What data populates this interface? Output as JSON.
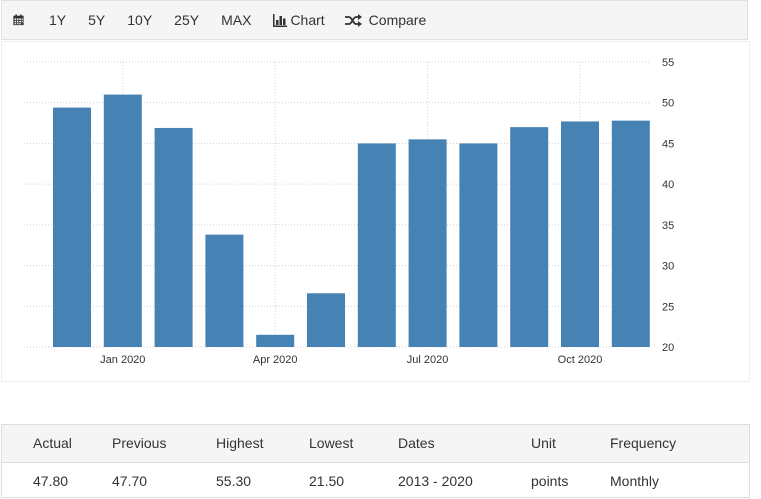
{
  "toolbar": {
    "calendar_icon": "calendar-icon",
    "ranges": [
      "1Y",
      "5Y",
      "10Y",
      "25Y",
      "MAX"
    ],
    "chart_label": "Chart",
    "chart_icon": "bar-chart-icon",
    "compare_label": "Compare",
    "compare_icon": "shuffle-icon"
  },
  "chart_data": {
    "type": "bar",
    "categories": [
      "Dec 2019",
      "Jan 2020",
      "Feb 2020",
      "Mar 2020",
      "Apr 2020",
      "May 2020",
      "Jun 2020",
      "Jul 2020",
      "Aug 2020",
      "Sep 2020",
      "Oct 2020",
      "Nov 2020"
    ],
    "values": [
      49.4,
      51.0,
      46.9,
      33.8,
      21.5,
      26.6,
      45.0,
      45.5,
      45.0,
      47.0,
      47.7,
      47.8
    ],
    "x_tick_labels": [
      "Jan 2020",
      "Apr 2020",
      "Jul 2020",
      "Oct 2020"
    ],
    "y_ticks": [
      20,
      25,
      30,
      35,
      40,
      45,
      50,
      55
    ],
    "ylim": [
      20,
      55
    ],
    "bar_color": "#4682b4",
    "grid": true,
    "y_axis_side": "right",
    "title": "",
    "xlabel": "",
    "ylabel": ""
  },
  "table": {
    "headers": [
      "Actual",
      "Previous",
      "Highest",
      "Lowest",
      "Dates",
      "Unit",
      "Frequency"
    ],
    "row": [
      "47.80",
      "47.70",
      "55.30",
      "21.50",
      "2013 - 2020",
      "points",
      "Monthly"
    ]
  }
}
